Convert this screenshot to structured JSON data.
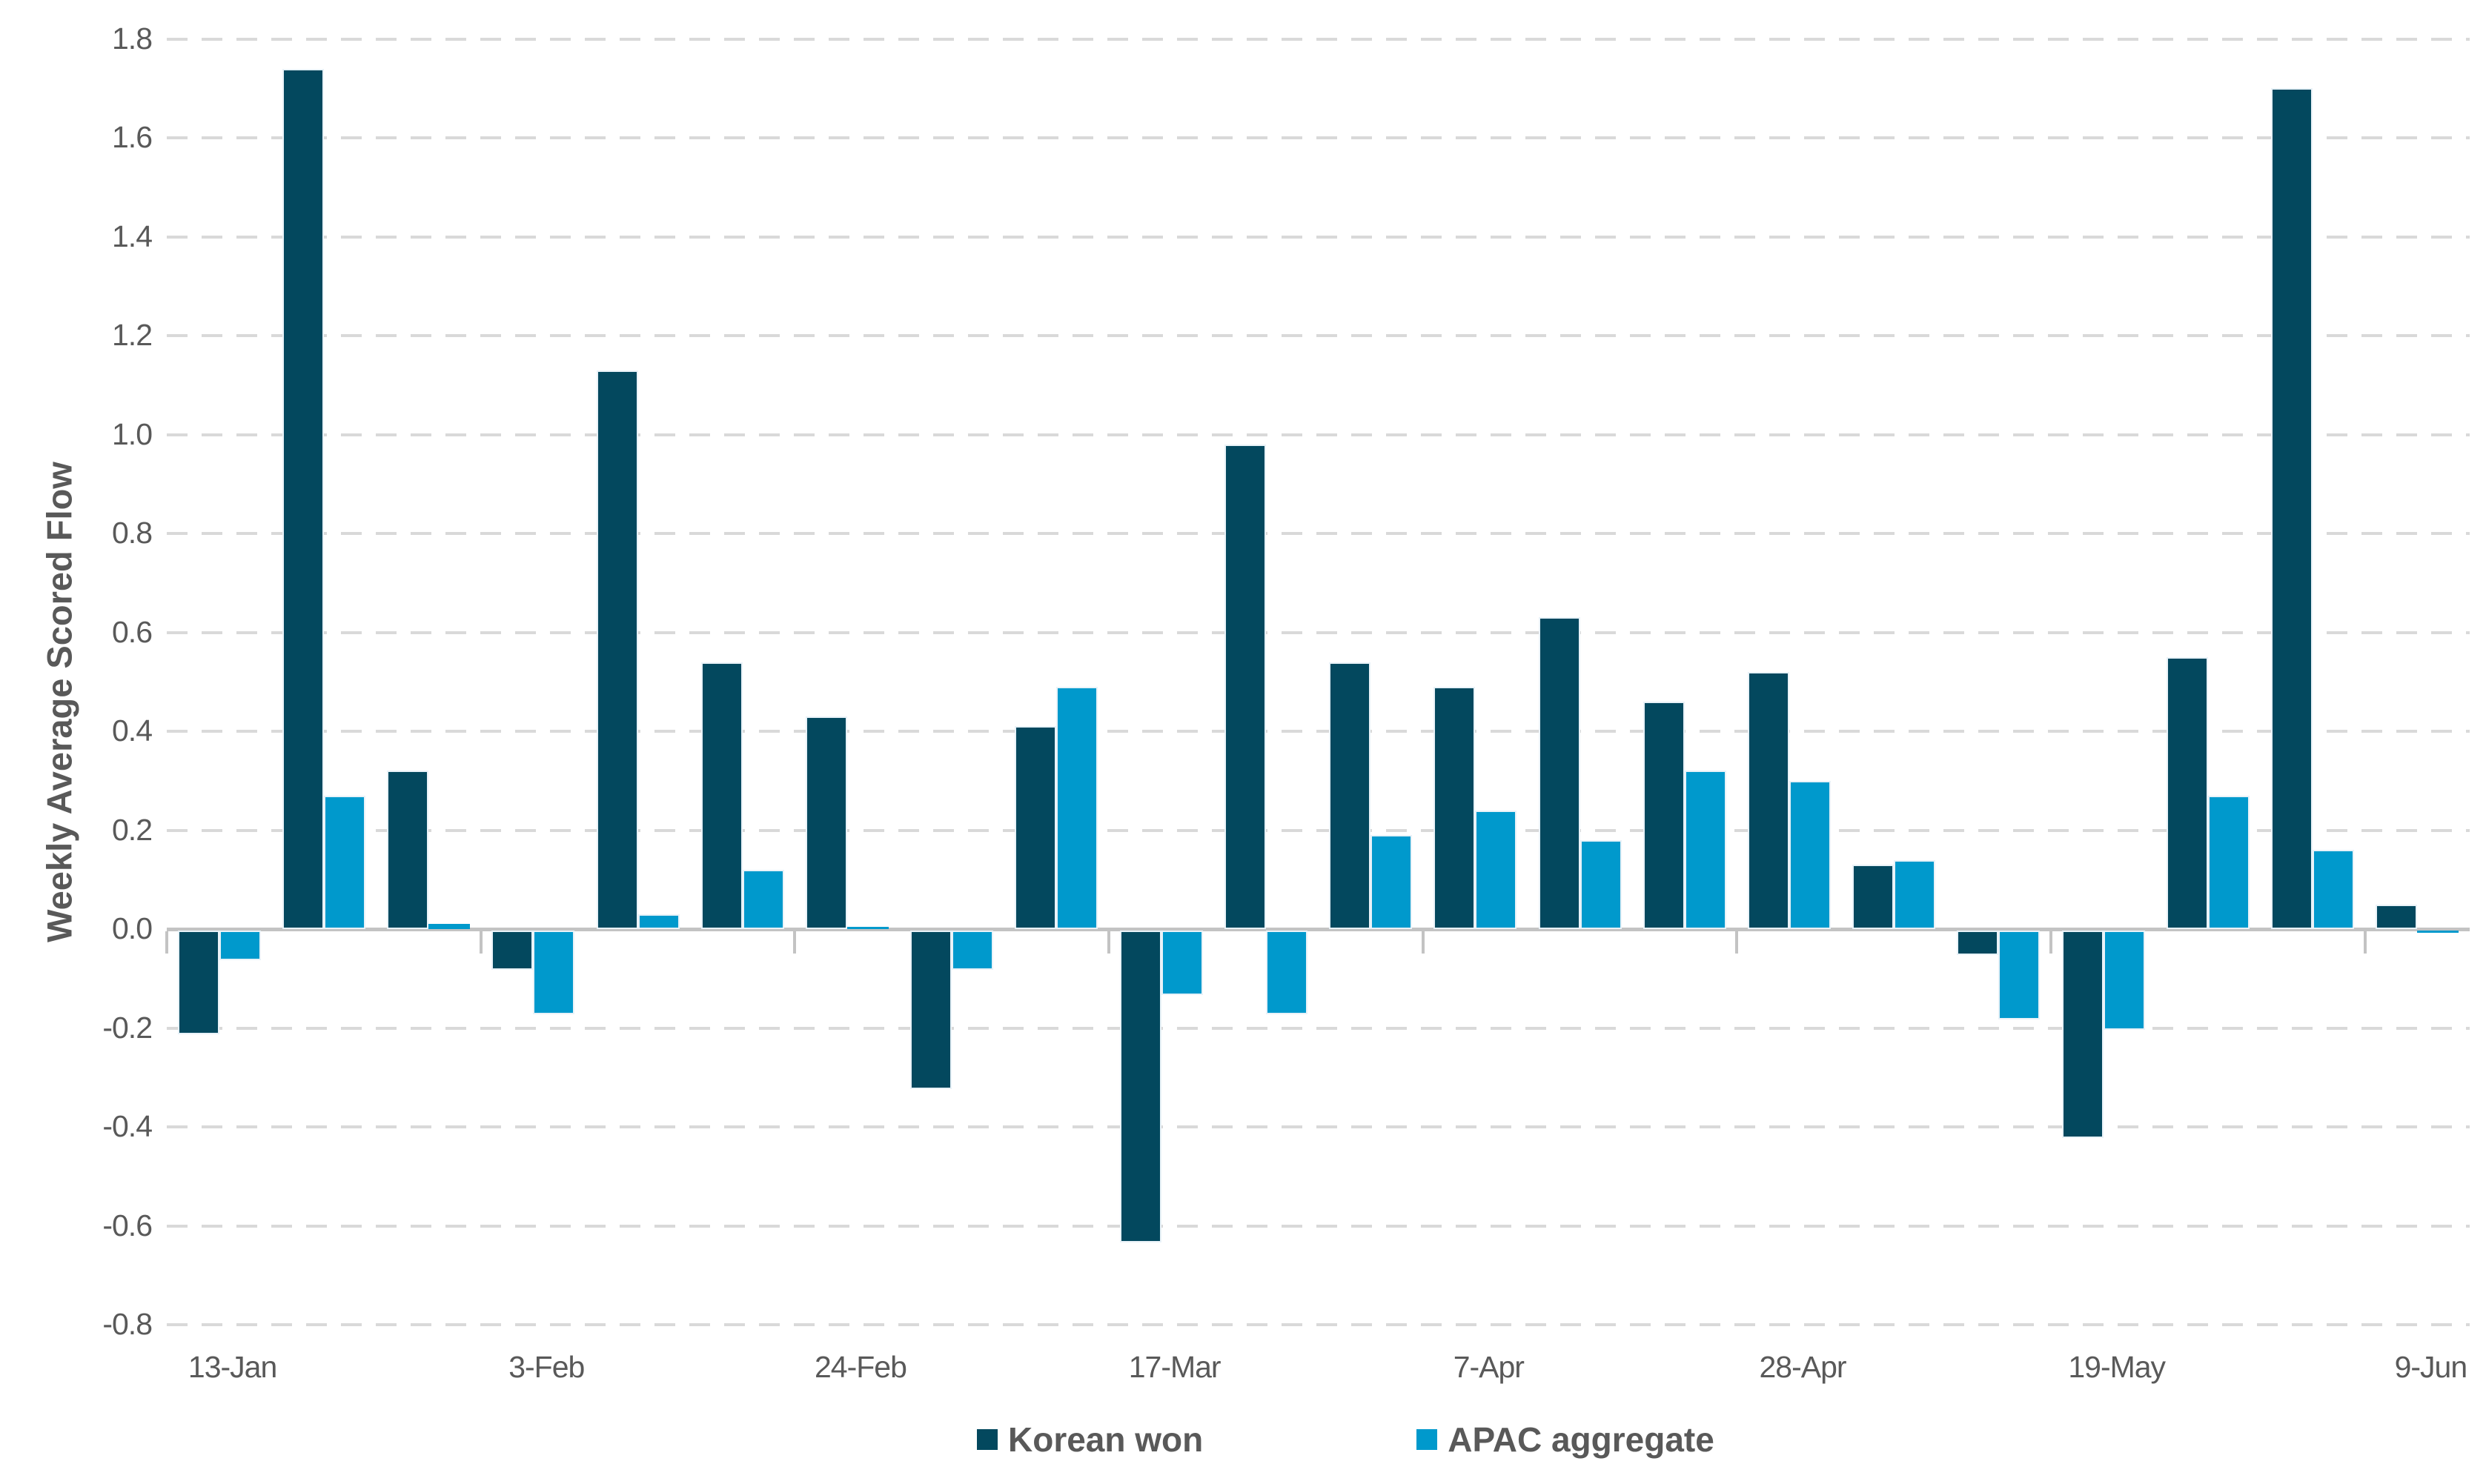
{
  "chart_data": {
    "type": "bar",
    "title": "",
    "xlabel": "",
    "ylabel": "Weekly Average Scored Flow",
    "ylim": [
      -0.8,
      1.8
    ],
    "ytick_step": 0.2,
    "y_tick_labels": [
      "1.8",
      "1.6",
      "1.4",
      "1.2",
      "1.0",
      "0.8",
      "0.6",
      "0.4",
      "0.2",
      "0.0",
      "-0.2",
      "-0.4",
      "-0.6",
      "-0.8"
    ],
    "grid": "horizontal-dashed",
    "legend_position": "bottom-center",
    "x_label_interval": 3,
    "x_axis_labels_shown": [
      "13-Jan",
      "3-Feb",
      "24-Feb",
      "17-Mar",
      "7-Apr",
      "28-Apr",
      "19-May",
      "9-Jun"
    ],
    "categories": [
      "13-Jan",
      "20-Jan",
      "27-Jan",
      "3-Feb",
      "10-Feb",
      "17-Feb",
      "24-Feb",
      "3-Mar",
      "10-Mar",
      "17-Mar",
      "24-Mar",
      "31-Mar",
      "7-Apr",
      "14-Apr",
      "21-Apr",
      "28-Apr",
      "5-May",
      "12-May",
      "19-May",
      "26-May",
      "2-Jun",
      "9-Jun"
    ],
    "series": [
      {
        "name": "Korean won",
        "color": "#03485E",
        "values": [
          -0.21,
          1.74,
          0.32,
          -0.08,
          1.13,
          0.54,
          0.43,
          -0.32,
          0.41,
          -0.63,
          0.98,
          0.54,
          0.49,
          0.63,
          0.46,
          0.52,
          0.13,
          -0.05,
          -0.42,
          0.55,
          1.7,
          0.05
        ]
      },
      {
        "name": "APAC aggregate",
        "color": "#0099CC",
        "values": [
          -0.06,
          0.27,
          0.01,
          -0.17,
          0.03,
          0.12,
          0.005,
          -0.08,
          0.49,
          -0.13,
          -0.17,
          0.19,
          0.24,
          0.18,
          0.32,
          0.3,
          0.14,
          -0.18,
          -0.2,
          0.27,
          0.16,
          -0.005
        ]
      }
    ]
  },
  "colors": {
    "series_dark": "#03485E",
    "series_light": "#0099CC",
    "gridline": "#D9D9D9",
    "axis_line": "#C3C3C3",
    "text_gray": "#595959",
    "background": "#FFFFFF"
  }
}
